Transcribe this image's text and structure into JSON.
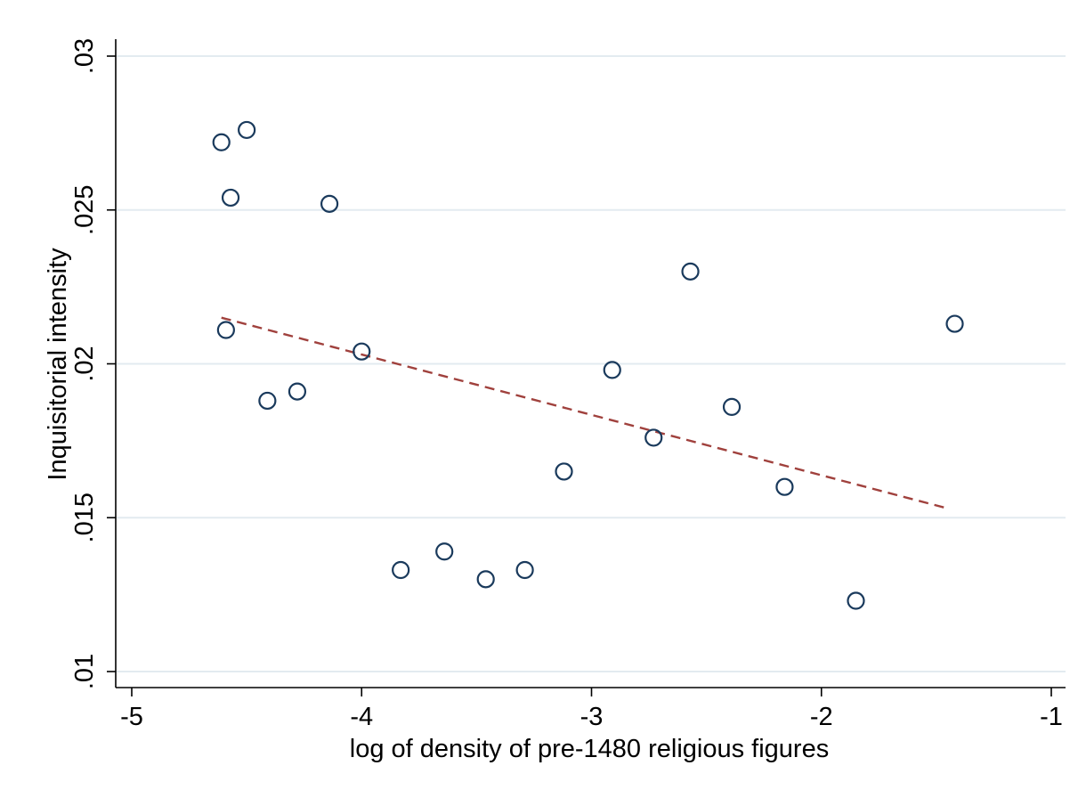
{
  "colors": {
    "background": "#ffffff",
    "gridline": "#e3ebf0",
    "axis": "#000000",
    "marker_stroke": "#1a3a5c",
    "fit_line": "#a0413d"
  },
  "chart_data": {
    "type": "scatter",
    "xlabel": "log of density of pre-1480 religious figures",
    "ylabel": "Inquisitorial intensity",
    "xlim": [
      -5,
      -1
    ],
    "ylim": [
      0.01,
      0.03
    ],
    "x_ticks": [
      -5,
      -4,
      -3,
      -2,
      -1
    ],
    "x_tick_labels": [
      "-5",
      "-4",
      "-3",
      "-2",
      "-1"
    ],
    "y_ticks": [
      0.01,
      0.015,
      0.02,
      0.025,
      0.03
    ],
    "y_tick_labels": [
      ".01",
      ".015",
      ".02",
      ".025",
      ".03"
    ],
    "grid": "horizontal",
    "legend": "none",
    "series": [
      {
        "kind": "points",
        "marker": "hollow-circle",
        "x": [
          -4.61,
          -4.5,
          -4.57,
          -4.14,
          -4.59,
          -4.0,
          -4.41,
          -4.28,
          -3.83,
          -3.64,
          -3.46,
          -3.29,
          -3.12,
          -2.91,
          -2.73,
          -2.57,
          -2.39,
          -2.16,
          -1.85,
          -1.42
        ],
        "y": [
          0.0272,
          0.0276,
          0.0254,
          0.0252,
          0.0211,
          0.0204,
          0.0188,
          0.0191,
          0.0133,
          0.0139,
          0.013,
          0.0133,
          0.0165,
          0.0198,
          0.0176,
          0.023,
          0.0186,
          0.016,
          0.0123,
          0.0213
        ]
      },
      {
        "kind": "fitted-line",
        "style": "dashed",
        "x": [
          -4.61,
          -1.45
        ],
        "y": [
          0.0215,
          0.0153
        ]
      }
    ]
  }
}
